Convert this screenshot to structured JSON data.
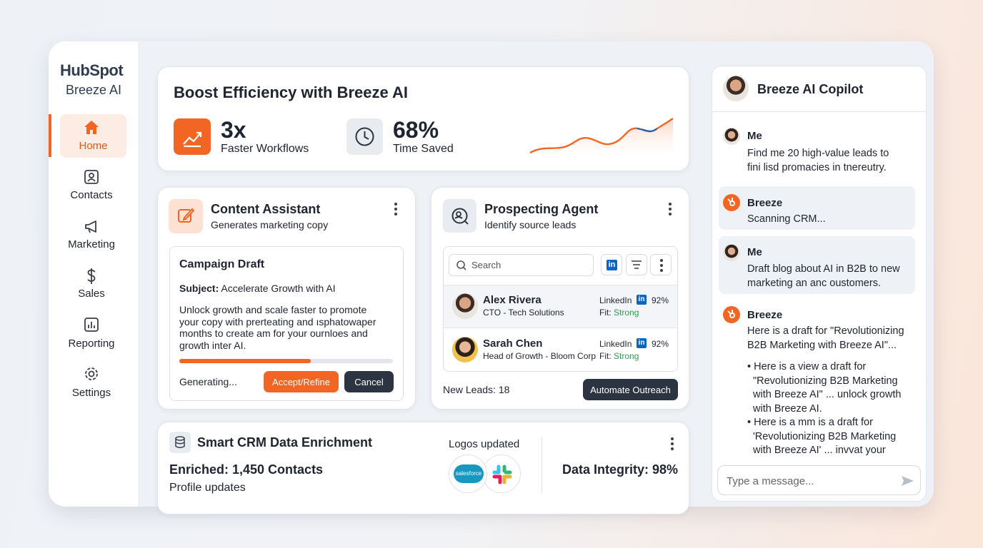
{
  "sidebar": {
    "brand": "HubSpot",
    "product": "Breeze AI",
    "nav": [
      "Home",
      "Contacts",
      "Marketing",
      "Sales",
      "Reporting",
      "Settings"
    ]
  },
  "hero": {
    "title": "Boost Efficiency with Breeze AI",
    "stats": [
      {
        "value": "3x",
        "label": "Faster Workflows"
      },
      {
        "value": "68%",
        "label": "Time Saved"
      }
    ]
  },
  "content_assistant": {
    "title": "Content Assistant",
    "subtitle": "Generates marketing copy",
    "draft_title": "Campaign Draft",
    "subject_label": "Subject:",
    "subject": "Accelerate Growth with AI",
    "body": [
      "Unlock growth and scale faster to promote",
      "your copy with prеrteating and ısphatowaper",
      "months to create am for your ournloes and",
      "growth inter AI."
    ],
    "status": "Generating...",
    "buttons": [
      "Accept/Refine",
      "Cancel"
    ]
  },
  "prospecting_agent": {
    "title": "Prospecting Agent",
    "subtitle": "Identify source leads",
    "search_placeholder": "Search",
    "leads": [
      {
        "name": "Alex Rivera",
        "role": "CTO - Tech Solutions",
        "source": "LinkedIn",
        "score": "92%",
        "fit_label": "Fit:",
        "fit": "Strong"
      },
      {
        "name": "Sarah Chen",
        "role": "Head of Growth - Bloom Corp",
        "source": "LinkedIn",
        "score": "92%",
        "fit_label": "Fit:",
        "fit": "Strong"
      }
    ],
    "new_leads": "New Leads: 18",
    "button": "Automate Outreach"
  },
  "enrichment": {
    "title": "Smart CRM Data Enrichment",
    "enriched": "Enriched: 1,450 Contacts",
    "detail": "Profile updates",
    "logos_label": "Logos updated",
    "logo_text": "salesforce",
    "integrity": "Data Integrity: 98%"
  },
  "copilot": {
    "title": "Breeze AI Copilot",
    "messages": [
      {
        "sender": "Me",
        "lines": [
          "Find me 20 high-value leads to",
          "fini lisd promacies in tnereutry."
        ]
      },
      {
        "sender": "Breeze",
        "lines": [
          "Scanning CRM..."
        ]
      },
      {
        "sender": "Me",
        "lines": [
          "Draft blog about AI in B2B to new",
          "marketing an anc oustomers."
        ]
      },
      {
        "sender": "Breeze",
        "lines": [
          "Here is a draft for \"Revolutionizing",
          "B2B Marketing with Breeze AI\"..."
        ],
        "bullets": [
          [
            "• Here is a view a draft for",
            "\"Revolutionizing B2B Marketing",
            "with Breeze AI\" ... unlock growth",
            "with Breeze AI."
          ],
          [
            "• Here is a mm is a draft for",
            "'Revolutionizing B2B Marketing",
            "with Breeze AI' ... invvat your"
          ]
        ]
      }
    ],
    "input_placeholder": "Type a message..."
  }
}
